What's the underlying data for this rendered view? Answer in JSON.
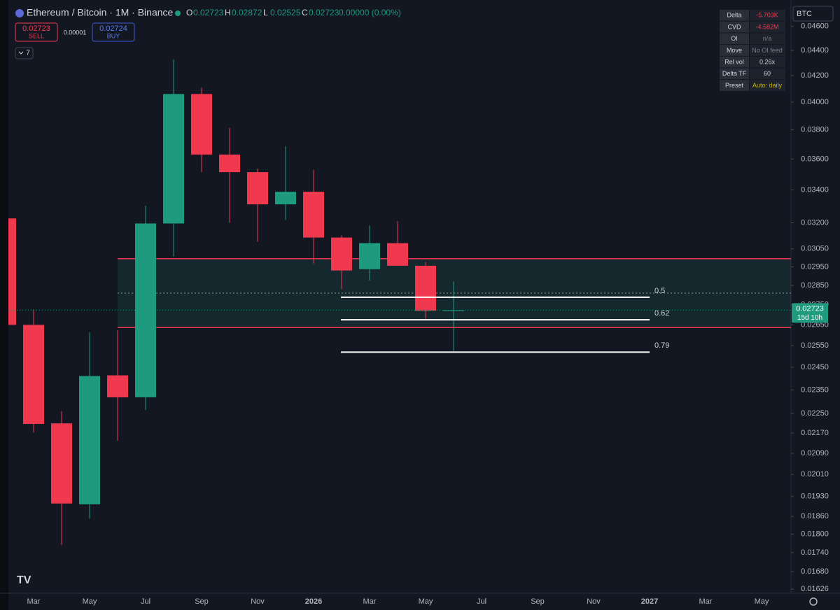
{
  "header": {
    "symbol": "Ethereum / Bitcoin · 1M · Binance",
    "ohlc": [
      {
        "key": "O",
        "value": "0.02723"
      },
      {
        "key": "H",
        "value": "0.02872"
      },
      {
        "key": "L",
        "value": "0.02525"
      },
      {
        "key": "C",
        "value": "0.02723"
      }
    ],
    "change": "0.00000 (0.00%)",
    "sell_price": "0.02723",
    "sell_label": "SELL",
    "spread": "0.00001",
    "buy_price": "0.02724",
    "buy_label": "BUY",
    "indicators_count": "7",
    "currency": "BTC"
  },
  "stats_table": [
    [
      "Delta",
      "-5.703K"
    ],
    [
      "CVD",
      "-4.582M"
    ],
    [
      "OI",
      "n/a"
    ],
    [
      "Move",
      "No OI feed"
    ],
    [
      "Rel vol",
      "0.26x"
    ],
    [
      "Delta TF",
      "60"
    ],
    [
      "Preset",
      "Auto: daily"
    ]
  ],
  "chart_data": {
    "type": "candlestick",
    "log_scale": true,
    "up_color": "#1e9a7e",
    "down_color": "#f0394f",
    "categories": [
      null,
      "Mar",
      null,
      "May",
      null,
      "Jul",
      null,
      "Sep",
      null,
      "Nov",
      null,
      "2026",
      null,
      "Mar",
      null,
      "May",
      null,
      "Jul",
      null,
      "Sep",
      null,
      "Nov",
      null,
      "2027",
      null,
      "Mar",
      null,
      "May"
    ],
    "open": [
      0.03226,
      0.0265,
      0.02209,
      0.01902,
      0.02414,
      0.02318,
      0.03196,
      0.0406,
      0.0363,
      0.03514,
      0.03311,
      0.03389,
      0.03114,
      0.02937,
      0.03082,
      0.02956,
      0.02723,
      null,
      null,
      null,
      null,
      null,
      null,
      null,
      null,
      null,
      null,
      null
    ],
    "high": [
      0.03226,
      0.02727,
      0.02259,
      0.02613,
      0.02623,
      0.03302,
      0.04327,
      0.04108,
      0.03814,
      0.03537,
      0.03687,
      0.03528,
      0.03127,
      0.03184,
      0.03209,
      0.02976,
      0.02872,
      null,
      null,
      null,
      null,
      null,
      null,
      null,
      null,
      null,
      null,
      null
    ],
    "low": [
      0.0265,
      0.02172,
      0.01764,
      0.01853,
      0.02139,
      0.02265,
      0.03007,
      0.03514,
      0.032,
      0.0309,
      0.03217,
      0.02968,
      0.02832,
      0.02877,
      0.02956,
      0.02681,
      0.02525,
      null,
      null,
      null,
      null,
      null,
      null,
      null,
      null,
      null,
      null,
      null
    ],
    "close": [
      0.0265,
      0.02207,
      0.01905,
      0.02411,
      0.02318,
      0.03196,
      0.0406,
      0.0363,
      0.03514,
      0.03311,
      0.03389,
      0.03114,
      0.0293,
      0.03082,
      0.02956,
      0.0272,
      0.02723,
      null,
      null,
      null,
      null,
      null,
      null,
      null,
      null,
      null,
      null,
      null
    ],
    "ylim": [
      0.01614,
      0.0483
    ],
    "yticks": [
      {
        "value": 0.046,
        "label": "0.04600"
      },
      {
        "value": 0.044,
        "label": "0.04400"
      },
      {
        "value": 0.042,
        "label": "0.04200"
      },
      {
        "value": 0.04,
        "label": "0.04000"
      },
      {
        "value": 0.038,
        "label": "0.03800"
      },
      {
        "value": 0.036,
        "label": "0.03600"
      },
      {
        "value": 0.034,
        "label": "0.03400"
      },
      {
        "value": 0.032,
        "label": "0.03200"
      },
      {
        "value": 0.0305,
        "label": "0.03050"
      },
      {
        "value": 0.0295,
        "label": "0.02950"
      },
      {
        "value": 0.0285,
        "label": "0.02850"
      },
      {
        "value": 0.0275,
        "label": "0.02750"
      },
      {
        "value": 0.0265,
        "label": "0.02650"
      },
      {
        "value": 0.0255,
        "label": "0.02550"
      },
      {
        "value": 0.0245,
        "label": "0.02450"
      },
      {
        "value": 0.0235,
        "label": "0.02350"
      },
      {
        "value": 0.0225,
        "label": "0.02250"
      },
      {
        "value": 0.0217,
        "label": "0.02170"
      },
      {
        "value": 0.0209,
        "label": "0.02090"
      },
      {
        "value": 0.0201,
        "label": "0.02010"
      },
      {
        "value": 0.0193,
        "label": "0.01930"
      },
      {
        "value": 0.0186,
        "label": "0.01860"
      },
      {
        "value": 0.018,
        "label": "0.01800"
      },
      {
        "value": 0.0174,
        "label": "0.01740"
      },
      {
        "value": 0.0168,
        "label": "0.01680"
      },
      {
        "value": 0.01626,
        "label": "0.01626"
      }
    ],
    "last_price": 0.02723,
    "countdown": "15d 10h",
    "zone": {
      "top": 0.02995,
      "bottom": 0.02637,
      "color": "#f0394f"
    },
    "fib_levels": [
      {
        "ratio": 0.5,
        "price": 0.02789
      },
      {
        "ratio": 0.62,
        "price": 0.02675
      },
      {
        "ratio": 0.79,
        "price": 0.0252
      }
    ]
  }
}
